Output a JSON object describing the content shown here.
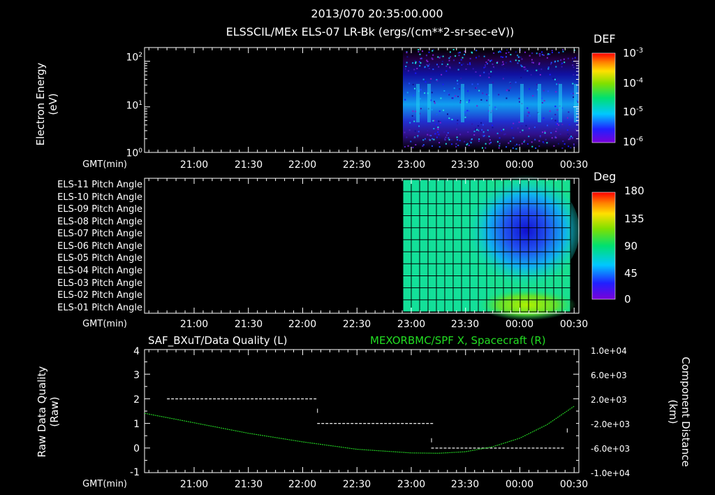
{
  "header": {
    "timestamp": "2013/070 20:35:00.000",
    "subtitle": "ELSSCIL/MEx ELS-07 LR-Bk  (ergs/(cm**2-sr-sec-eV))"
  },
  "time_axis": {
    "label": "GMT(min)",
    "ticks": [
      "21:00",
      "21:30",
      "22:00",
      "22:30",
      "23:00",
      "23:30",
      "00:00",
      "00:30"
    ]
  },
  "panel1": {
    "ylabel_line1": "Electron Energy",
    "ylabel_line2": "(eV)",
    "yticks": [
      {
        "base": "10",
        "exp": "2"
      },
      {
        "base": "10",
        "exp": "1"
      },
      {
        "base": "10",
        "exp": "0"
      }
    ],
    "colorbar_title": "DEF",
    "colorbar_ticks": [
      {
        "base": "10",
        "exp": "-3"
      },
      {
        "base": "10",
        "exp": "-4"
      },
      {
        "base": "10",
        "exp": "-5"
      },
      {
        "base": "10",
        "exp": "-6"
      }
    ]
  },
  "panel2": {
    "rows": [
      "ELS-11 Pitch Angle",
      "ELS-10 Pitch Angle",
      "ELS-09 Pitch Angle",
      "ELS-08 Pitch Angle",
      "ELS-07 Pitch Angle",
      "ELS-06 Pitch Angle",
      "ELS-05 Pitch Angle",
      "ELS-04 Pitch Angle",
      "ELS-03 Pitch Angle",
      "ELS-02 Pitch Angle",
      "ELS-01 Pitch Angle"
    ],
    "colorbar_title": "Deg",
    "colorbar_ticks": [
      "180",
      "135",
      "90",
      "45",
      "0"
    ]
  },
  "panel3": {
    "left_title": "SAF_BXuT/Data Quality (L)",
    "right_title": "MEXORBMC/SPF X, Spacecraft (R)",
    "ylabel_line1": "Raw Data Quality",
    "ylabel_line2": "(Raw)",
    "yticks_left": [
      "4",
      "3",
      "2",
      "1",
      "0",
      "-1"
    ],
    "yticks_right": [
      "1.0e+04",
      "6.0e+03",
      "2.0e+03",
      "-2.0e+03",
      "-6.0e+03",
      "-1.0e+04"
    ],
    "ylabel_right_line1": "Component Distance",
    "ylabel_right_line2": "(km)",
    "colors": {
      "quality": "#ffffff",
      "position": "#22cc22"
    }
  },
  "chart_data": [
    {
      "type": "heatmap",
      "title": "ELSSCIL/MEx ELS-07 LR-Bk  (ergs/(cm**2-sr-sec-eV))",
      "xlabel": "GMT(min)",
      "ylabel": "Electron Energy (eV)",
      "x_range": [
        "20:35",
        "00:32"
      ],
      "y_range": [
        1,
        200
      ],
      "y_scale": "log",
      "data_start": "22:57",
      "colorbar": {
        "label": "DEF",
        "range": [
          1e-06,
          0.001
        ],
        "scale": "log"
      }
    },
    {
      "type": "heatmap",
      "xlabel": "GMT(min)",
      "categories": [
        "ELS-11",
        "ELS-10",
        "ELS-09",
        "ELS-08",
        "ELS-07",
        "ELS-06",
        "ELS-05",
        "ELS-04",
        "ELS-03",
        "ELS-02",
        "ELS-01"
      ],
      "data_start": "22:57",
      "colorbar": {
        "label": "Deg",
        "range": [
          0,
          180
        ]
      },
      "grid": true
    },
    {
      "type": "line",
      "left_title": "SAF_BXuT/Data Quality (L)",
      "right_title": "MEXORBMC/SPF X, Spacecraft (R)",
      "xlabel": "GMT(min)",
      "ylabel": "Raw Data Quality (Raw)",
      "ylabel_right": "Component Distance (km)",
      "ylim": [
        -1,
        4
      ],
      "ylim_right": [
        -10000,
        10000
      ],
      "series": [
        {
          "name": "SAF_BXuT/Data Quality (L)",
          "axis": "left",
          "color": "#ffffff",
          "segments": [
            {
              "x": [
                "20:45",
                "22:08"
              ],
              "y": 2
            },
            {
              "x": [
                "22:08",
                "23:11"
              ],
              "y": 1
            },
            {
              "x": [
                "23:11",
                "00:25"
              ],
              "y": 0
            }
          ]
        },
        {
          "name": "MEXORBMC/SPF X, Spacecraft (R)",
          "axis": "right",
          "color": "#22cc22",
          "points": [
            [
              "20:35",
              -350
            ],
            [
              "21:00",
              -1900
            ],
            [
              "21:30",
              -3600
            ],
            [
              "22:00",
              -5000
            ],
            [
              "22:30",
              -6200
            ],
            [
              "23:00",
              -6800
            ],
            [
              "23:15",
              -6850
            ],
            [
              "23:30",
              -6600
            ],
            [
              "23:45",
              -5800
            ],
            [
              "00:00",
              -4400
            ],
            [
              "00:15",
              -2200
            ],
            [
              "00:30",
              800
            ]
          ]
        }
      ]
    }
  ]
}
